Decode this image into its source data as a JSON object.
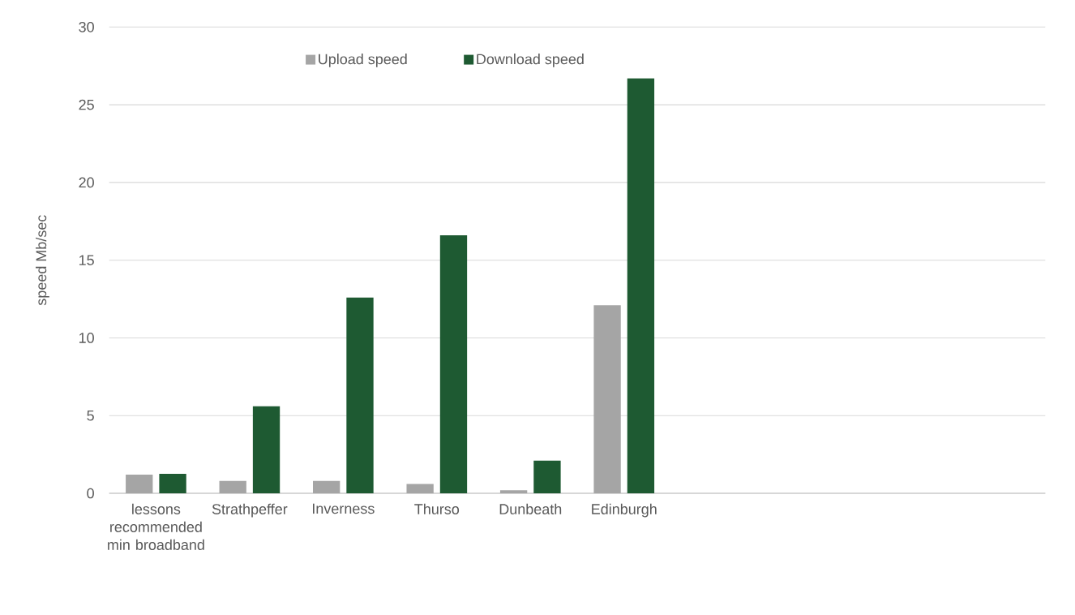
{
  "chart_data": {
    "type": "bar",
    "ylabel": "speed Mb/sec",
    "categories": [
      "lessons recommended min broadband",
      "Strathpeffer",
      "Inverness",
      "Thurso",
      "Dunbeath",
      "Edinburgh",
      null,
      null,
      null,
      null
    ],
    "series": [
      {
        "name": "Upload speed",
        "color": "#a5a5a5",
        "values": [
          1.2,
          0.8,
          0.8,
          0.6,
          0.2,
          12.1,
          null,
          null,
          null,
          null
        ]
      },
      {
        "name": "Download speed",
        "color": "#1e5a32",
        "values": [
          1.25,
          5.6,
          12.6,
          16.6,
          2.1,
          26.7,
          null,
          null,
          null,
          null
        ]
      }
    ],
    "ylim": [
      0,
      30
    ],
    "yticks": [
      0,
      5,
      10,
      15,
      20,
      25,
      30
    ],
    "grid": "y",
    "legend": "top"
  }
}
